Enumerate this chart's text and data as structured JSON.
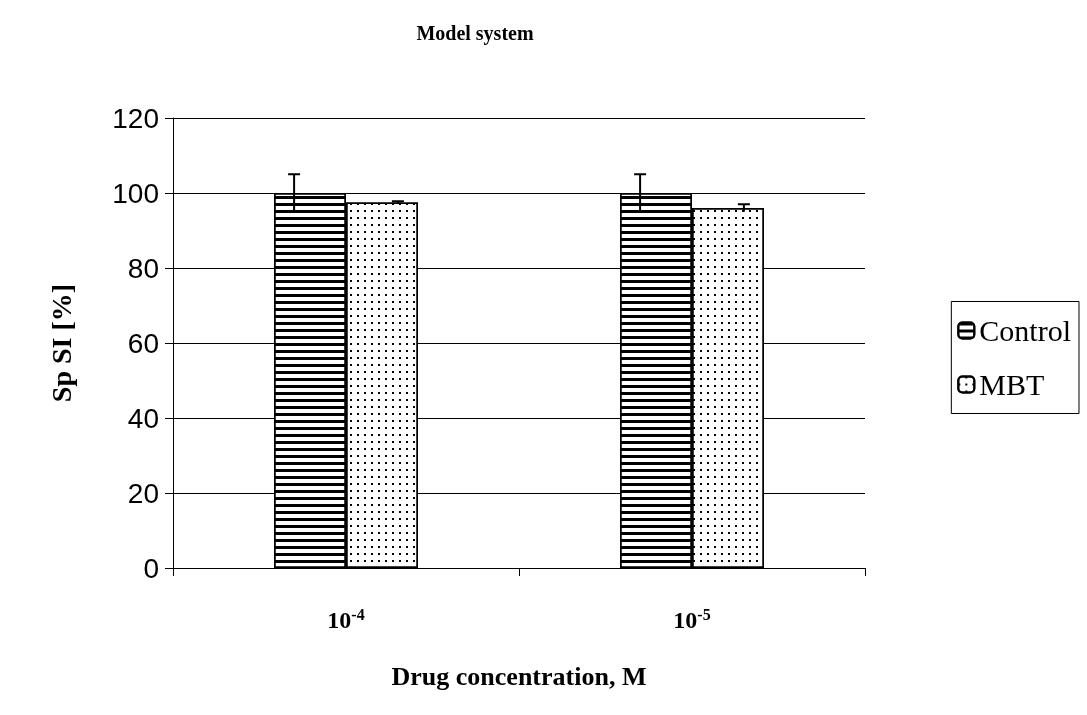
{
  "chart_data": {
    "type": "bar",
    "title": "Model system",
    "xlabel": "Drug concentration, M",
    "ylabel": "Sp SI [%]",
    "categories": [
      "10$^{-4}$",
      "10$^{-5}$"
    ],
    "series": [
      {
        "name": "Control",
        "color": "#000000",
        "values": [
          100,
          100
        ],
        "errors": [
          5,
          5
        ]
      },
      {
        "name": "MBT",
        "color": "#000000",
        "values": [
          97.5,
          96
        ],
        "errors": [
          0.3,
          1
        ]
      }
    ],
    "ylim": [
      0,
      120
    ],
    "yticks": [
      0,
      20,
      40,
      60,
      80,
      100,
      120
    ],
    "grid": "y",
    "legend": "right"
  }
}
